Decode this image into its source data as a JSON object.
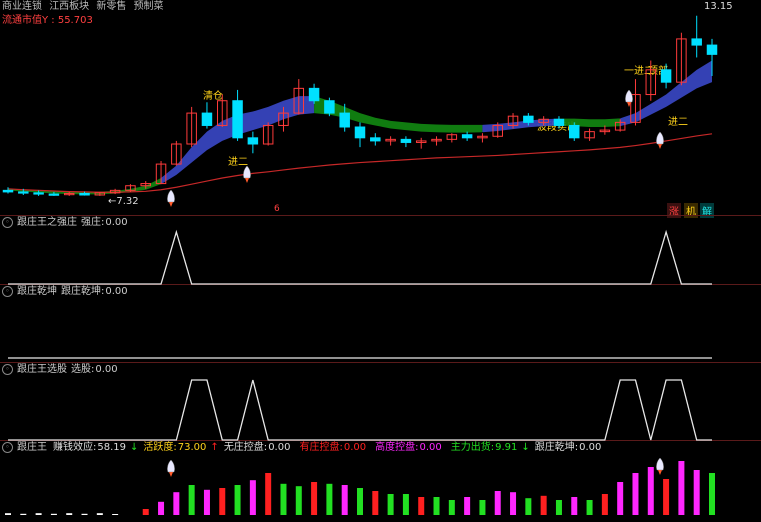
{
  "colors": {
    "up": "#ff3b3b",
    "down": "#00e0ff",
    "ma": "#c62828",
    "bandBlue": "#3a48c8",
    "bandGreen": "#128a12",
    "line": "#e8e8e8",
    "yellow": "#ffd21a",
    "magenta": "#ff27ff",
    "green": "#22e022",
    "red": "#ff2020"
  },
  "top": {
    "title_items": [
      "商业连锁",
      "江西板块",
      "新零售",
      "预制菜"
    ],
    "cap_label": "流通市值Y : 55.703",
    "high_price": "13.15",
    "low_price": "←7.32",
    "annotations": {
      "qingcang": "清仓",
      "jiner_a": "进二",
      "jiner_b": "进二",
      "bodong": "波段卖出",
      "yijinji": "一进二",
      "ding": "顶部"
    },
    "markers": {
      "zhang": "涨",
      "ji": "机",
      "jie": "解",
      "six": "6"
    }
  },
  "panel1": {
    "name": "跟庄王之强庄",
    "label": "强庄:",
    "value": "0.00"
  },
  "panel2": {
    "name": "跟庄乾坤",
    "label": "跟庄乾坤:",
    "value": "0.00"
  },
  "panel3": {
    "name": "跟庄王选股",
    "label": "选股:",
    "value": "0.00"
  },
  "panel4": {
    "name": "跟庄王",
    "items": [
      {
        "label": "赚钱效应:",
        "value": "58.19",
        "arrow": "↓",
        "color": "#dddddd",
        "arrowColor": "#22e022"
      },
      {
        "label": "活跃度:",
        "value": "73.00",
        "arrow": "↑",
        "color": "#ffd21a",
        "arrowColor": "#ff2020"
      },
      {
        "label": "无庄控盘:",
        "value": "0.00",
        "arrow": "",
        "color": "#dddddd",
        "arrowColor": ""
      },
      {
        "label": "有庄控盘:",
        "value": "0.00",
        "arrow": "",
        "color": "#ff2020",
        "arrowColor": ""
      },
      {
        "label": "高度控盘:",
        "value": "0.00",
        "arrow": "",
        "color": "#ff27ff",
        "arrowColor": ""
      },
      {
        "label": "主力出货:",
        "value": "9.91",
        "arrow": "↓",
        "color": "#22e022",
        "arrowColor": "#22e022"
      },
      {
        "label": "跟庄乾坤:",
        "value": "0.00",
        "arrow": "",
        "color": "#dddddd",
        "arrowColor": ""
      }
    ]
  },
  "chart_data": [
    {
      "type": "candlestick",
      "title": "",
      "ylim": [
        6.8,
        13.4
      ],
      "candles": [
        [
          7.5,
          7.6,
          7.4,
          7.45
        ],
        [
          7.45,
          7.55,
          7.35,
          7.42
        ],
        [
          7.42,
          7.5,
          7.32,
          7.38
        ],
        [
          7.38,
          7.45,
          7.32,
          7.36
        ],
        [
          7.36,
          7.45,
          7.32,
          7.4
        ],
        [
          7.4,
          7.46,
          7.33,
          7.35
        ],
        [
          7.35,
          7.45,
          7.32,
          7.42
        ],
        [
          7.42,
          7.55,
          7.38,
          7.5
        ],
        [
          7.5,
          7.7,
          7.45,
          7.65
        ],
        [
          7.65,
          7.8,
          7.55,
          7.72
        ],
        [
          7.72,
          8.45,
          7.7,
          8.35
        ],
        [
          8.35,
          9.1,
          8.3,
          9.0
        ],
        [
          9.0,
          10.2,
          8.9,
          10.0
        ],
        [
          10.0,
          10.35,
          9.5,
          9.6
        ],
        [
          9.6,
          10.6,
          9.55,
          10.4
        ],
        [
          10.4,
          10.75,
          9.1,
          9.2
        ],
        [
          9.2,
          9.4,
          8.7,
          9.0
        ],
        [
          9.0,
          9.7,
          8.95,
          9.6
        ],
        [
          9.6,
          10.2,
          9.4,
          10.0
        ],
        [
          10.0,
          11.1,
          9.95,
          10.8
        ],
        [
          10.8,
          10.95,
          10.3,
          10.4
        ],
        [
          10.4,
          10.5,
          9.9,
          10.0
        ],
        [
          10.0,
          10.3,
          9.4,
          9.55
        ],
        [
          9.55,
          9.7,
          8.9,
          9.2
        ],
        [
          9.2,
          9.35,
          8.95,
          9.1
        ],
        [
          9.1,
          9.25,
          8.95,
          9.15
        ],
        [
          9.15,
          9.25,
          8.9,
          9.05
        ],
        [
          9.05,
          9.2,
          8.85,
          9.1
        ],
        [
          9.1,
          9.25,
          8.95,
          9.15
        ],
        [
          9.15,
          9.35,
          9.05,
          9.3
        ],
        [
          9.3,
          9.4,
          9.1,
          9.2
        ],
        [
          9.2,
          9.35,
          9.05,
          9.25
        ],
        [
          9.25,
          9.7,
          9.2,
          9.6
        ],
        [
          9.6,
          10.0,
          9.5,
          9.9
        ],
        [
          9.9,
          10.0,
          9.6,
          9.7
        ],
        [
          9.7,
          9.9,
          9.6,
          9.8
        ],
        [
          9.8,
          9.9,
          9.5,
          9.6
        ],
        [
          9.6,
          9.7,
          9.1,
          9.2
        ],
        [
          9.2,
          9.5,
          9.1,
          9.4
        ],
        [
          9.4,
          9.6,
          9.3,
          9.45
        ],
        [
          9.45,
          9.8,
          9.4,
          9.7
        ],
        [
          9.7,
          11.1,
          9.6,
          10.6
        ],
        [
          10.6,
          11.7,
          10.4,
          11.4
        ],
        [
          11.4,
          11.6,
          10.8,
          11.0
        ],
        [
          11.0,
          12.6,
          10.9,
          12.4
        ],
        [
          12.4,
          13.15,
          11.8,
          12.2
        ],
        [
          12.2,
          12.4,
          11.2,
          11.9
        ]
      ],
      "ma": [
        7.55,
        7.52,
        7.5,
        7.48,
        7.46,
        7.45,
        7.44,
        7.44,
        7.45,
        7.47,
        7.52,
        7.6,
        7.7,
        7.8,
        7.9,
        7.98,
        8.05,
        8.1,
        8.16,
        8.22,
        8.27,
        8.32,
        8.36,
        8.4,
        8.43,
        8.46,
        8.49,
        8.52,
        8.55,
        8.57,
        8.59,
        8.61,
        8.63,
        8.66,
        8.69,
        8.72,
        8.75,
        8.78,
        8.81,
        8.85,
        8.89,
        8.95,
        9.02,
        9.1,
        9.18,
        9.26,
        9.33
      ],
      "band_upper": [
        7.55,
        7.52,
        7.5,
        7.48,
        7.47,
        7.46,
        7.46,
        7.48,
        7.55,
        7.65,
        7.9,
        8.3,
        8.9,
        9.4,
        9.75,
        9.95,
        10.05,
        10.2,
        10.4,
        10.55,
        10.55,
        10.4,
        10.2,
        10.0,
        9.85,
        9.75,
        9.7,
        9.65,
        9.63,
        9.62,
        9.62,
        9.62,
        9.65,
        9.7,
        9.76,
        9.8,
        9.82,
        9.82,
        9.8,
        9.8,
        9.83,
        10.0,
        10.3,
        10.6,
        11.0,
        11.4,
        11.7
      ],
      "band_lower": [
        7.5,
        7.46,
        7.43,
        7.4,
        7.38,
        7.37,
        7.37,
        7.4,
        7.45,
        7.52,
        7.7,
        8.0,
        8.4,
        8.8,
        9.1,
        9.3,
        9.45,
        9.6,
        9.8,
        9.95,
        10.0,
        9.95,
        9.85,
        9.7,
        9.6,
        9.5,
        9.45,
        9.4,
        9.38,
        9.37,
        9.37,
        9.38,
        9.42,
        9.48,
        9.54,
        9.58,
        9.6,
        9.58,
        9.55,
        9.55,
        9.58,
        9.7,
        9.95,
        10.2,
        10.5,
        10.8,
        11.0
      ]
    },
    {
      "type": "line",
      "name": "强庄",
      "x": [
        0,
        1,
        2,
        3,
        4,
        5,
        6,
        7,
        8,
        9,
        10,
        11,
        12,
        13,
        14,
        15,
        16,
        17,
        18,
        19,
        20,
        21,
        22,
        23,
        24,
        25,
        26,
        27,
        28,
        29,
        30,
        31,
        32,
        33,
        34,
        35,
        36,
        37,
        38,
        39,
        40,
        41,
        42,
        43,
        44,
        45,
        46
      ],
      "values": [
        0,
        0,
        0,
        0,
        0,
        0,
        0,
        0,
        0,
        0,
        0,
        1,
        0,
        0,
        0,
        0,
        0,
        0,
        0,
        0,
        0,
        0,
        0,
        0,
        0,
        0,
        0,
        0,
        0,
        0,
        0,
        0,
        0,
        0,
        0,
        0,
        0,
        0,
        0,
        0,
        0,
        0,
        0,
        1,
        0,
        0,
        0
      ]
    },
    {
      "type": "line",
      "name": "跟庄乾坤",
      "values": [
        0,
        0,
        0,
        0,
        0,
        0,
        0,
        0,
        0,
        0,
        0,
        0,
        0,
        0,
        0,
        0,
        0,
        0,
        0,
        0,
        0,
        0,
        0,
        0,
        0,
        0,
        0,
        0,
        0,
        0,
        0,
        0,
        0,
        0,
        0,
        0,
        0,
        0,
        0,
        0,
        0,
        0,
        0,
        0,
        0,
        0,
        0
      ]
    },
    {
      "type": "line",
      "name": "选股",
      "values": [
        0,
        0,
        0,
        0,
        0,
        0,
        0,
        0,
        0,
        0,
        0,
        0,
        1,
        1,
        0,
        0,
        1,
        0,
        0,
        0,
        0,
        0,
        0,
        0,
        0,
        0,
        0,
        0,
        0,
        0,
        0,
        0,
        0,
        0,
        0,
        0,
        0,
        0,
        0,
        0,
        1,
        1,
        0,
        1,
        1,
        0,
        0
      ]
    },
    {
      "type": "bar",
      "name": "跟庄王",
      "values": [
        0.03,
        0.02,
        0.03,
        0.02,
        0.03,
        0.02,
        0.03,
        0.01,
        0,
        0.1,
        0.22,
        0.38,
        0.5,
        0.42,
        0.45,
        0.5,
        0.58,
        0.7,
        0.52,
        0.48,
        0.55,
        0.52,
        0.5,
        0.45,
        0.4,
        0.35,
        0.35,
        0.3,
        0.3,
        0.25,
        0.3,
        0.25,
        0.4,
        0.38,
        0.28,
        0.32,
        0.25,
        0.3,
        0.25,
        0.35,
        0.55,
        0.7,
        0.8,
        0.6,
        0.9,
        0.75,
        0.7
      ],
      "colors": [
        "w",
        "w",
        "w",
        "w",
        "w",
        "w",
        "w",
        "w",
        "n",
        "r",
        "m",
        "m",
        "g",
        "m",
        "r",
        "g",
        "m",
        "r",
        "g",
        "g",
        "r",
        "g",
        "m",
        "g",
        "r",
        "g",
        "g",
        "r",
        "g",
        "g",
        "m",
        "g",
        "m",
        "m",
        "g",
        "r",
        "g",
        "m",
        "g",
        "r",
        "m",
        "m",
        "m",
        "r",
        "m",
        "m",
        "g"
      ]
    }
  ]
}
